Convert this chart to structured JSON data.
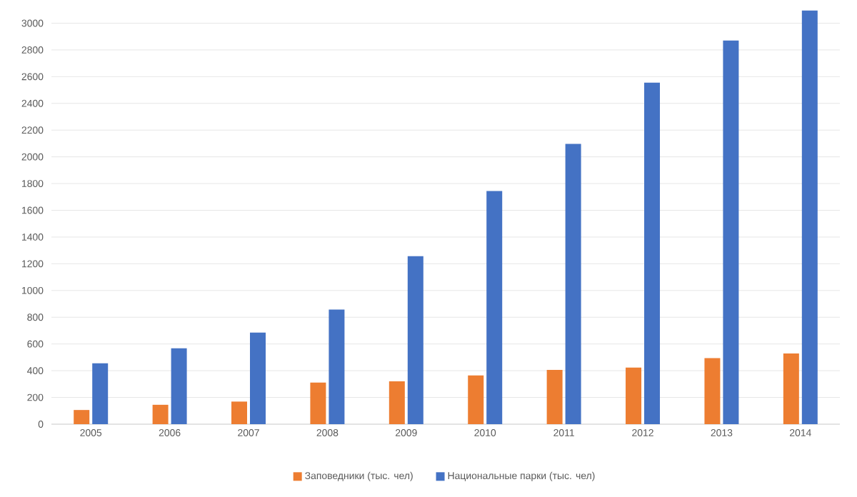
{
  "chart_data": {
    "type": "bar",
    "categories": [
      "2005",
      "2006",
      "2007",
      "2008",
      "2009",
      "2010",
      "2011",
      "2012",
      "2013",
      "2014"
    ],
    "series": [
      {
        "name": "Заповедники (тыс. чел)",
        "color": "#ed7d31",
        "values": [
          106,
          145,
          169,
          311,
          321,
          364,
          406,
          424,
          494,
          529
        ]
      },
      {
        "name": "Национальные парки (тыс. чел)",
        "color": "#4472c4",
        "values": [
          455,
          568,
          685,
          858,
          1257,
          1744,
          2097,
          2555,
          2870,
          3095
        ]
      }
    ],
    "ylim": [
      0,
      3120
    ],
    "yticks": [
      0,
      200,
      400,
      600,
      800,
      1000,
      1200,
      1400,
      1600,
      1800,
      2000,
      2200,
      2400,
      2600,
      2800,
      3000
    ],
    "grid": "y",
    "legend": "bottom"
  }
}
